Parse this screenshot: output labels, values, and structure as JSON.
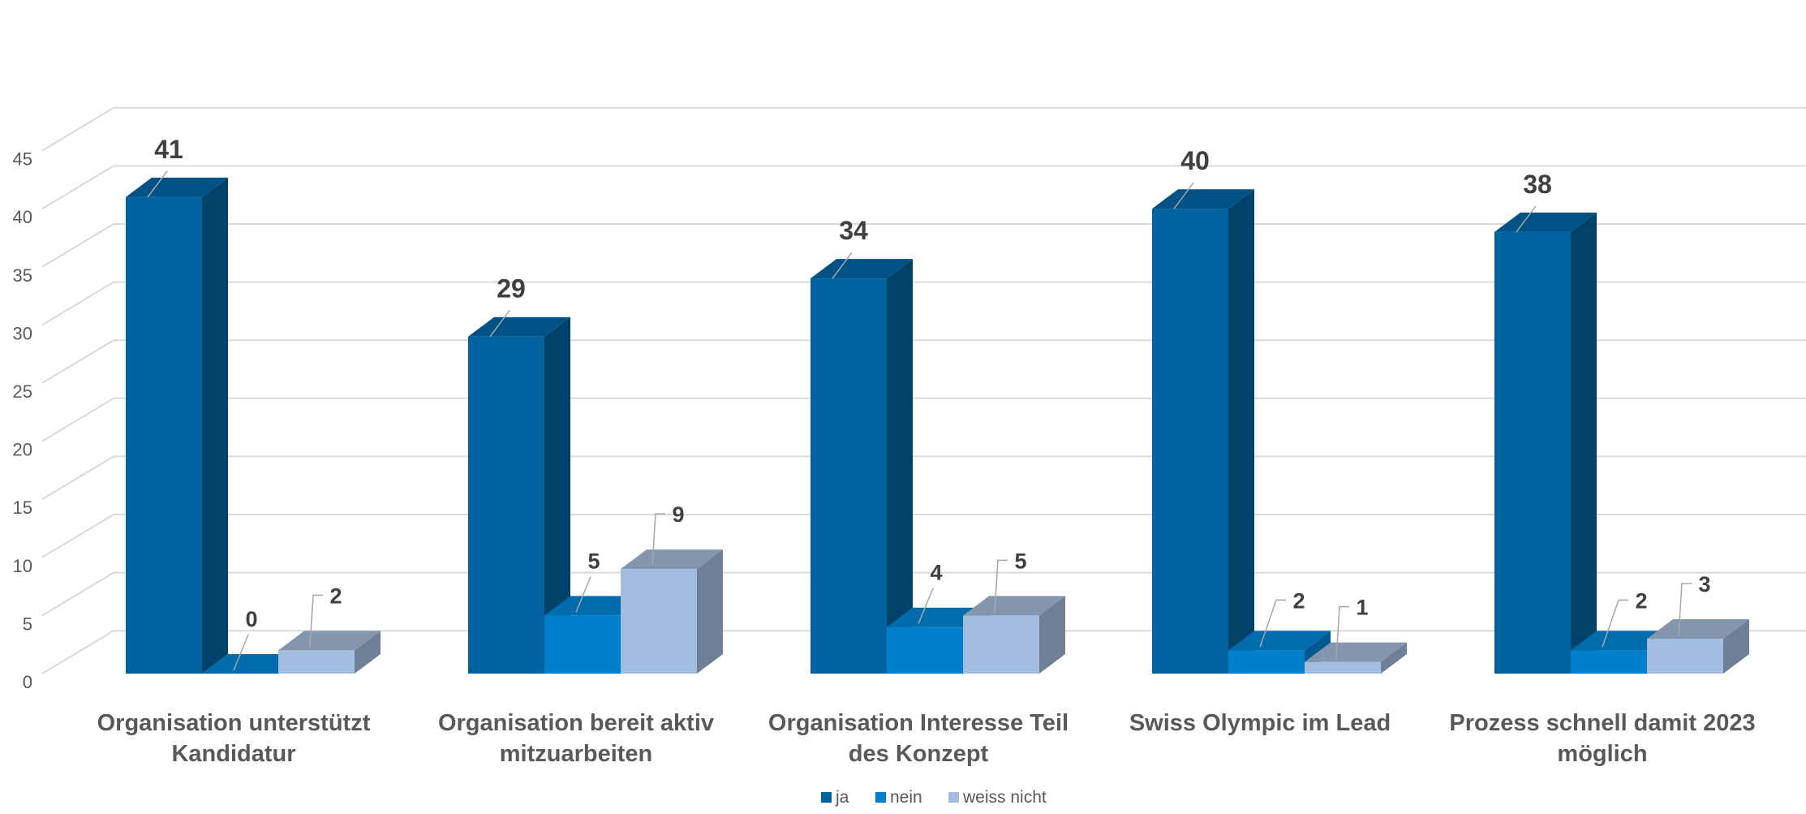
{
  "chart_data": {
    "type": "bar",
    "title": "",
    "xlabel": "",
    "ylabel": "",
    "ylim": [
      0,
      45
    ],
    "yticks": [
      0,
      5,
      10,
      15,
      20,
      25,
      30,
      35,
      40,
      45
    ],
    "grid": true,
    "legend_position": "bottom",
    "style": "3d-clustered-column",
    "categories": [
      [
        "Organisation unterstützt",
        "Kandidatur"
      ],
      [
        "Organisation bereit aktiv",
        "mitzuarbeiten"
      ],
      [
        "Organisation Interesse Teil",
        "des Konzept"
      ],
      [
        "Swiss Olympic im Lead"
      ],
      [
        "Prozess schnell damit 2023",
        "möglich"
      ]
    ],
    "series": [
      {
        "name": "ja",
        "values": [
          41,
          29,
          34,
          40,
          38
        ],
        "color": "#00639F",
        "side_color": "#004269",
        "top_color": "#005286"
      },
      {
        "name": "nein",
        "values": [
          0,
          5,
          4,
          2,
          2
        ],
        "color": "#0080CC",
        "side_color": "#005A8F",
        "top_color": "#006CAC"
      },
      {
        "name": "weiss nicht",
        "values": [
          2,
          9,
          5,
          1,
          3
        ],
        "color": "#A3BDE0",
        "side_color": "#6E7F96",
        "top_color": "#8496AE"
      }
    ]
  }
}
